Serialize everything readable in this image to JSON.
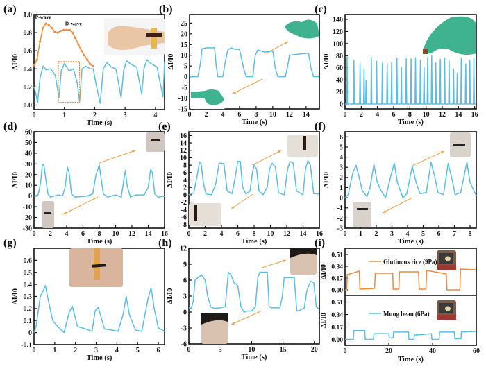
{
  "figure": {
    "colors": {
      "blue": "#5bbde4",
      "orange": "#ee8a3a",
      "arrow": "#f0a14a",
      "axis": "#111111"
    }
  },
  "chart_data": [
    {
      "id": "a",
      "panel_label": "(a)",
      "type": "line",
      "xlabel": "Time (s)",
      "ylabel": "ΔI/I0",
      "xlim": [
        0,
        4.3
      ],
      "ylim": [
        -0.05,
        1.0
      ],
      "xticks": [
        0,
        1,
        2,
        3,
        4
      ],
      "yticks": [
        0.0,
        0.2,
        0.4,
        0.6,
        0.8,
        1.0
      ],
      "ytick_labels": [
        "0.0",
        "0.2",
        "0.4",
        "0.6",
        "0.8",
        "1.0"
      ],
      "annotations": [
        "P-wave",
        "D-wave"
      ],
      "inset": "wrist-pulse-photo",
      "series": [
        {
          "name": "pulse",
          "color": "blue",
          "x": [
            0,
            0.05,
            0.12,
            0.2,
            0.3,
            0.4,
            0.55,
            0.7,
            0.82,
            0.9,
            1.0,
            1.15,
            1.3,
            1.42,
            1.5,
            1.58,
            1.7,
            1.85,
            1.95,
            2.05,
            2.18,
            2.28,
            2.4,
            2.55,
            2.7,
            2.87,
            2.95,
            3.05,
            3.2,
            3.38,
            3.55,
            3.62,
            3.72,
            3.85,
            4.05,
            4.25,
            4.3
          ],
          "y": [
            0.2,
            0.14,
            0.03,
            0.3,
            0.43,
            0.39,
            0.4,
            0.33,
            0.08,
            0.38,
            0.46,
            0.38,
            0.4,
            0.25,
            0.04,
            0.4,
            0.43,
            0.4,
            0.4,
            0.22,
            0.02,
            0.4,
            0.47,
            0.42,
            0.4,
            0.08,
            0.38,
            0.49,
            0.45,
            0.42,
            0.12,
            0.4,
            0.5,
            0.46,
            0.42,
            0.09,
            0.48
          ]
        },
        {
          "name": "zoomed single pulse",
          "color": "orange",
          "markers": true,
          "x_frac": [
            0.0,
            0.05,
            0.1,
            0.15,
            0.2,
            0.25,
            0.3,
            0.35,
            0.4,
            0.45,
            0.5,
            0.55,
            0.6,
            0.65,
            0.7,
            0.75,
            0.8,
            0.85,
            0.9,
            0.95,
            1.0
          ],
          "y": [
            0.44,
            0.5,
            0.7,
            0.85,
            0.9,
            0.89,
            0.85,
            0.81,
            0.8,
            0.82,
            0.83,
            0.83,
            0.83,
            0.8,
            0.74,
            0.67,
            0.6,
            0.55,
            0.5,
            0.45,
            0.43
          ]
        }
      ],
      "highlight_box": {
        "x": [
          0.8,
          1.5
        ],
        "y": [
          0.03,
          0.48
        ]
      }
    },
    {
      "id": "b",
      "panel_label": "(b)",
      "type": "line",
      "xlabel": "Time (s)",
      "ylabel": "ΔI/I0",
      "xlim": [
        0,
        15.6
      ],
      "ylim": [
        -15,
        29
      ],
      "xticks": [
        0,
        2,
        4,
        6,
        8,
        10,
        12,
        14
      ],
      "yticks": [
        -15,
        -10,
        -5,
        0,
        5,
        10,
        15,
        20,
        25
      ],
      "inset": "finger-bending-photos",
      "series": [
        {
          "name": "finger bending",
          "color": "blue",
          "x": [
            0,
            1.0,
            1.3,
            1.5,
            2.0,
            2.6,
            3.0,
            3.2,
            3.4,
            4.0,
            4.3,
            4.6,
            5.0,
            5.5,
            6.0,
            6.5,
            6.8,
            7.6,
            7.9,
            8.2,
            9.0,
            10.0,
            10.3,
            10.6,
            11.5,
            11.8,
            12.0,
            13.0,
            14.3,
            14.6,
            14.9,
            15.6
          ],
          "y": [
            0,
            0,
            6,
            13,
            13.5,
            13.5,
            13.5,
            5,
            0,
            0,
            7,
            12.5,
            13.5,
            12.8,
            12.8,
            4,
            0,
            0,
            10,
            12.5,
            11.5,
            12,
            4,
            0,
            0,
            5,
            10,
            10.5,
            11,
            4,
            0,
            0
          ]
        }
      ]
    },
    {
      "id": "c",
      "panel_label": "(c)",
      "type": "line",
      "xlabel": "Time (s)",
      "ylabel": "ΔI/I0",
      "xlim": [
        0,
        16.2
      ],
      "ylim": [
        -8,
        148
      ],
      "xticks": [
        0,
        2,
        4,
        6,
        8,
        10,
        12,
        14,
        16
      ],
      "yticks": [
        0,
        20,
        40,
        60,
        80,
        100,
        120,
        140
      ],
      "inset": "finger-tapping-photo",
      "series": [
        {
          "name": "finger tapping",
          "color": "blue",
          "spike_times": [
            0.25,
            1.1,
            1.85,
            2.35,
            2.6,
            3.25,
            3.9,
            4.6,
            5.2,
            5.75,
            6.4,
            6.95,
            7.55,
            8.15,
            8.7,
            9.3,
            9.75,
            10.2,
            10.7,
            11.2,
            11.75,
            12.3,
            12.85,
            13.4,
            13.85,
            14.35,
            14.9,
            15.4,
            15.9
          ],
          "spike_peaks": [
            78,
            72,
            67,
            57,
            39,
            77,
            71,
            67,
            67,
            69,
            76,
            61,
            75,
            75,
            76,
            73,
            61,
            77,
            80,
            68,
            74,
            76,
            71,
            58,
            51,
            76,
            66,
            72,
            75
          ]
        }
      ]
    },
    {
      "id": "d",
      "panel_label": "(d)",
      "type": "line",
      "xlabel": "Time (s)",
      "ylabel": "ΔI/I0",
      "xlim": [
        0,
        16
      ],
      "ylim": [
        -30,
        60
      ],
      "xticks": [
        0,
        2,
        4,
        6,
        8,
        10,
        12,
        14,
        16
      ],
      "yticks": [
        -30,
        -20,
        -10,
        0,
        10,
        20,
        30,
        40,
        50,
        60
      ],
      "inset": "knee-bending-photos",
      "series": [
        {
          "name": "knee bending",
          "color": "blue",
          "x": [
            0,
            0.5,
            0.8,
            1.0,
            1.2,
            1.4,
            1.7,
            2.0,
            3.0,
            3.5,
            3.8,
            4.1,
            4.3,
            4.6,
            5.0,
            6.5,
            7.2,
            7.6,
            8.0,
            8.2,
            8.5,
            9.0,
            10.0,
            10.7,
            11.0,
            11.2,
            11.4,
            11.8,
            12.5,
            13.5,
            14.0,
            14.3,
            14.5,
            14.8,
            15.2,
            16.0
          ],
          "y": [
            0,
            1,
            12,
            28,
            30,
            18,
            2,
            -1,
            1,
            0,
            8,
            27,
            22,
            2,
            -1,
            0,
            2,
            20,
            29,
            18,
            2,
            -1,
            1,
            -1,
            15,
            24,
            10,
            -1,
            1,
            1,
            8,
            25,
            22,
            2,
            -1,
            0
          ]
        }
      ]
    },
    {
      "id": "e",
      "panel_label": "(e)",
      "type": "line",
      "xlabel": "Time (s)",
      "ylabel": "ΔI/I0",
      "xlim": [
        0,
        16
      ],
      "ylim": [
        -9,
        17
      ],
      "xticks": [
        0,
        2,
        4,
        6,
        8,
        10,
        12,
        14,
        16
      ],
      "yticks": [
        -8,
        -6,
        -4,
        -2,
        0,
        2,
        4,
        6,
        8,
        10,
        12,
        14,
        16
      ],
      "inset": "wrist-bending-photos",
      "series": [
        {
          "name": "wrist bending",
          "color": "blue",
          "x": [
            0,
            0.6,
            1.0,
            1.3,
            1.5,
            1.8,
            2.1,
            2.8,
            3.3,
            3.7,
            4.0,
            4.3,
            4.7,
            5.3,
            5.7,
            6.0,
            6.3,
            6.6,
            7.0,
            7.5,
            7.8,
            8.0,
            8.3,
            8.6,
            9.1,
            9.6,
            9.9,
            10.2,
            10.6,
            11.0,
            11.7,
            12.1,
            12.4,
            12.8,
            13.2,
            14.0,
            14.3,
            14.6,
            14.9,
            15.3,
            16.0
          ],
          "y": [
            0,
            0.5,
            5,
            8.8,
            8.5,
            3,
            0.2,
            0,
            3,
            8.5,
            8.5,
            8.4,
            1,
            0.3,
            5,
            9,
            9,
            2,
            0.2,
            1,
            6,
            8,
            7,
            1,
            0,
            2,
            7,
            8.5,
            7.5,
            0.5,
            0,
            7,
            9,
            8.5,
            1,
            0,
            7,
            9.2,
            8,
            0.3,
            0.2
          ]
        }
      ]
    },
    {
      "id": "f",
      "panel_label": "(f)",
      "type": "line",
      "xlabel": "Time (s)",
      "ylabel": "ΔI/I0",
      "xlim": [
        0,
        8.4
      ],
      "ylim": [
        -3,
        6.5
      ],
      "xticks": [
        0,
        1,
        2,
        3,
        4,
        5,
        6,
        7,
        8
      ],
      "yticks": [
        -3,
        -2,
        -1,
        0,
        1,
        2,
        3,
        4,
        5,
        6
      ],
      "inset": "elbow-bending-photos",
      "series": [
        {
          "name": "elbow bending",
          "color": "blue",
          "x": [
            0,
            0.2,
            0.5,
            0.7,
            0.9,
            1.1,
            1.4,
            1.6,
            1.85,
            2.05,
            2.3,
            2.6,
            2.9,
            3.15,
            3.35,
            3.7,
            3.95,
            4.3,
            4.55,
            4.8,
            5.2,
            5.5,
            5.75,
            5.95,
            6.3,
            6.6,
            6.85,
            7.05,
            7.4,
            7.8,
            8.0,
            8.4
          ],
          "y": [
            0,
            0.3,
            2.5,
            3.2,
            2.0,
            0.7,
            0.1,
            1.0,
            3.3,
            1.6,
            0.7,
            0.0,
            2.0,
            3.4,
            1.5,
            0.0,
            0.4,
            3.1,
            1.5,
            0.4,
            0.5,
            3.5,
            2.0,
            0.5,
            0.3,
            3.4,
            1.8,
            0.3,
            0.5,
            3.5,
            1.5,
            0.2
          ]
        }
      ]
    },
    {
      "id": "g",
      "panel_label": "(g)",
      "type": "line",
      "xlabel": "Time (s)",
      "ylabel": "ΔI/I0",
      "xlim": [
        0,
        6.3
      ],
      "ylim": [
        -0.1,
        0.7
      ],
      "xticks": [
        0,
        1,
        2,
        3,
        4,
        5,
        6
      ],
      "yticks": [
        -0.1,
        0.0,
        0.1,
        0.2,
        0.3,
        0.4,
        0.5,
        0.6
      ],
      "inset": "throat-photo",
      "series": [
        {
          "name": "swallowing",
          "color": "blue",
          "x": [
            0,
            0.1,
            0.3,
            0.45,
            0.55,
            0.65,
            0.9,
            1.2,
            1.45,
            1.7,
            1.85,
            1.95,
            2.1,
            2.5,
            2.8,
            2.95,
            3.1,
            3.25,
            3.4,
            3.8,
            4.05,
            4.3,
            4.45,
            4.6,
            4.9,
            5.2,
            5.5,
            5.65,
            5.8,
            6.0,
            6.3
          ],
          "y": [
            0.0,
            0.05,
            0.3,
            0.35,
            0.39,
            0.3,
            0.1,
            0.04,
            0.0,
            0.17,
            0.22,
            0.15,
            0.05,
            0.03,
            0.01,
            0.18,
            0.21,
            0.12,
            0.03,
            0.02,
            0.01,
            0.15,
            0.3,
            0.15,
            0.02,
            0.01,
            0.28,
            0.37,
            0.2,
            0.04,
            0.01
          ]
        }
      ]
    },
    {
      "id": "h",
      "panel_label": "(h)",
      "type": "line",
      "xlabel": "Time (s)",
      "ylabel": "ΔI/I0",
      "xlim": [
        0,
        20.8
      ],
      "ylim": [
        -6,
        12
      ],
      "xticks": [
        0,
        5,
        10,
        15,
        20
      ],
      "yticks": [
        -6,
        -3,
        0,
        3,
        6,
        9,
        12
      ],
      "inset": "facial-expression-photos",
      "series": [
        {
          "name": "facial movement",
          "color": "blue",
          "x": [
            0,
            0.4,
            0.7,
            1.0,
            2.0,
            2.6,
            3.0,
            3.5,
            4.0,
            5.0,
            5.8,
            6.3,
            6.7,
            7.2,
            7.8,
            8.3,
            8.8,
            9.2,
            10.0,
            10.6,
            11.0,
            11.3,
            12.5,
            12.8,
            13.2,
            14.5,
            14.9,
            15.2,
            16.8,
            17.2,
            17.6,
            18.4,
            18.8,
            19.4,
            19.9,
            20.3,
            20.8
          ],
          "y": [
            0.8,
            0.7,
            2,
            6,
            7,
            6,
            3,
            1,
            0.7,
            0.8,
            1,
            7.5,
            7,
            5.5,
            5,
            1,
            0,
            0.2,
            0.2,
            1,
            6.5,
            7.5,
            7.5,
            1,
            0.8,
            0.8,
            3,
            6.5,
            6.5,
            0.2,
            0.3,
            0.8,
            4,
            5.8,
            5.5,
            1,
            0.5
          ]
        }
      ]
    },
    {
      "id": "i",
      "panel_label": "(i)",
      "type": "line",
      "xlabel": "Time (s)",
      "ylabel": "ΔI/I0",
      "xlim": [
        0,
        60
      ],
      "ylim": [
        -0.08,
        0.6
      ],
      "xticks": [
        0,
        20,
        40,
        60
      ],
      "yticks": [
        0.0,
        0.17,
        0.34,
        0.51
      ],
      "ytick_labels": [
        "0.00",
        "0.17",
        "0.34",
        "0.51"
      ],
      "subpanels": [
        {
          "legend": "Glutinous rice (9Pa)",
          "color": "orange",
          "inset": "glutinous-rice-photo",
          "x": [
            0,
            0.8,
            1.0,
            6.5,
            6.8,
            13.5,
            13.8,
            21.8,
            22.0,
            24.6,
            24.9,
            33.6,
            33.9,
            37.0,
            37.3,
            46.3,
            46.6,
            52.5,
            52.8,
            60
          ],
          "y": [
            0.0,
            0.0,
            0.22,
            0.27,
            0.01,
            0.02,
            0.24,
            0.24,
            0.01,
            0.01,
            0.26,
            0.26,
            0.01,
            0.01,
            0.28,
            0.23,
            0.0,
            0.0,
            0.3,
            0.29
          ]
        },
        {
          "legend": "Mung bean (6Pa)",
          "color": "blue",
          "inset": "mung-bean-photo",
          "x": [
            0,
            3.8,
            4.0,
            9.0,
            9.2,
            13.0,
            13.2,
            20.0,
            20.2,
            22.0,
            22.2,
            29.0,
            29.2,
            31.5,
            31.7,
            39.5,
            39.7,
            43.0,
            43.2,
            50.0,
            50.2,
            53.0,
            53.2,
            60
          ],
          "y": [
            0.0,
            0.0,
            0.12,
            0.12,
            0.0,
            0.0,
            0.08,
            0.08,
            0.02,
            0.02,
            0.1,
            0.1,
            0.0,
            0.0,
            0.06,
            0.08,
            0.0,
            0.0,
            0.1,
            0.1,
            0.01,
            0.01,
            0.1,
            0.11
          ]
        }
      ]
    }
  ]
}
